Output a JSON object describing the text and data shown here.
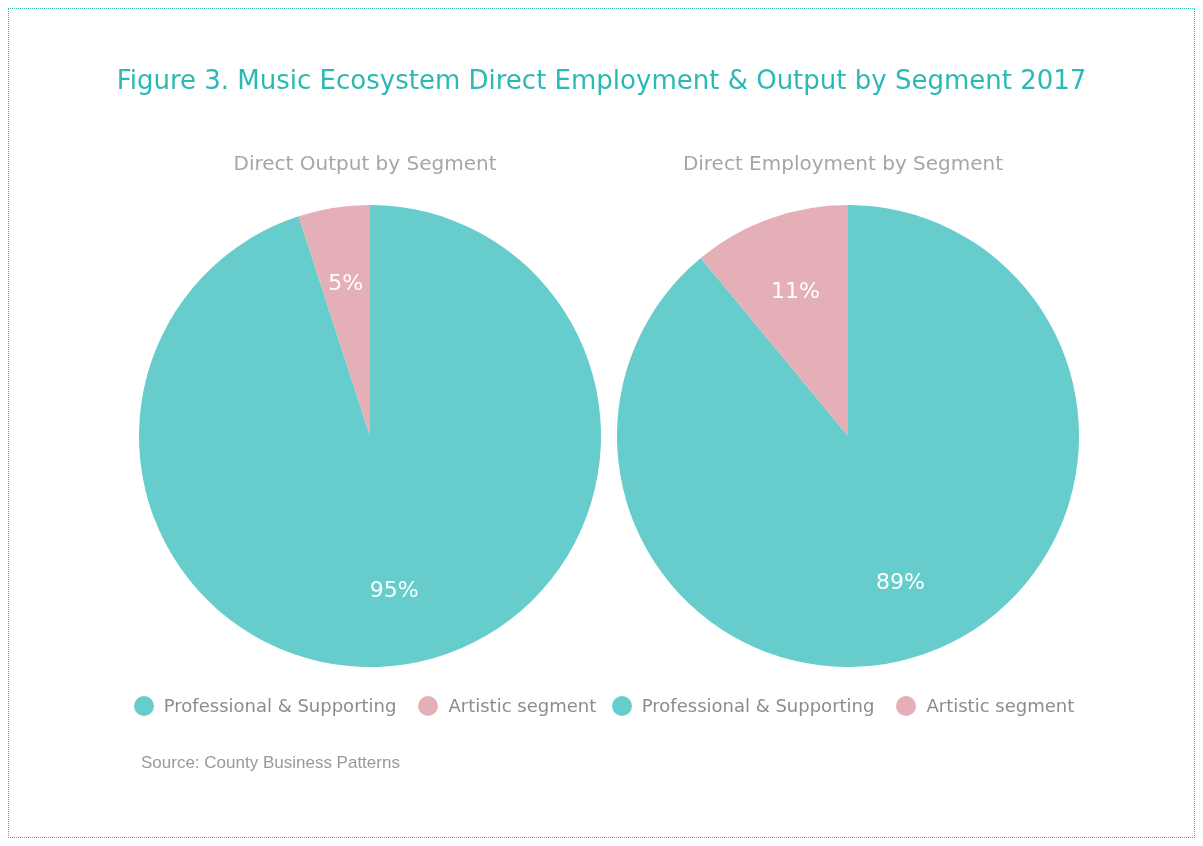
{
  "chart_data": [
    {
      "type": "pie",
      "title": "Direct Output by Segment",
      "categories": [
        "Professional & Supporting",
        "Artistic segment"
      ],
      "values": [
        95,
        5
      ],
      "colors": [
        "#66cccc",
        "#e5afb8"
      ],
      "value_labels": [
        "95%",
        "5%"
      ],
      "legend": "bottom",
      "annotations": [
        "Figure 3. Music Ecosystem Direct Employment & Output by Segment 2017",
        "Source: County Business Patterns"
      ]
    },
    {
      "type": "pie",
      "title": "Direct Employment by Segment",
      "categories": [
        "Professional & Supporting",
        "Artistic segment"
      ],
      "values": [
        89,
        11
      ],
      "colors": [
        "#66cccc",
        "#e5afb8"
      ],
      "value_labels": [
        "89%",
        "11%"
      ],
      "legend": "bottom"
    }
  ]
}
